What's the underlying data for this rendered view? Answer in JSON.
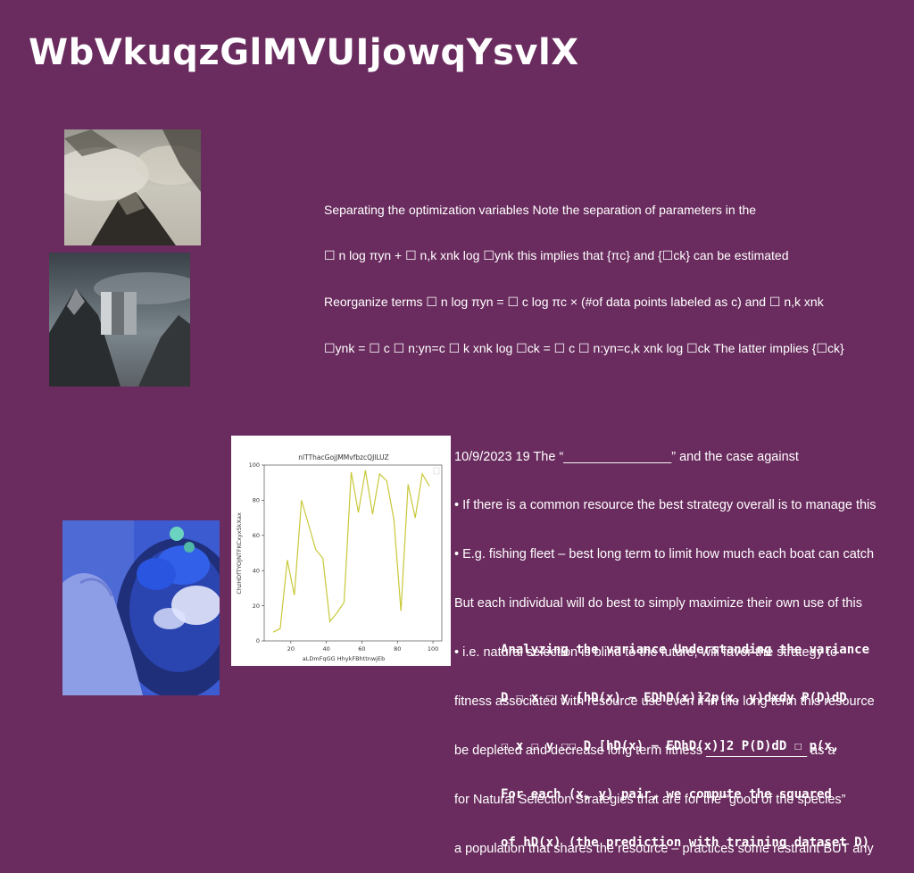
{
  "slide": {
    "title": "WbVkuqzGlMVUIjowqYsvlX",
    "images": [
      "mountain-clouds-photo",
      "mountain-monolith-photo",
      "blue-food-hand-photo"
    ],
    "text_blocks": [
      [
        "Separating the optimization variables Note the separation of parameters in the",
        "☐ n log πyn + ☐ n,k xnk log ☐ynk this implies that {πc} and {☐ck} can be estimated",
        "Reorganize terms ☐ n log πyn = ☐ c log πc × (#of data points labeled as c) and ☐ n,k xnk",
        "☐ynk = ☐ c ☐ n:yn=c ☐ k xnk log ☐ck = ☐ c ☐ n:yn=c,k xnk log ☐ck The latter implies {☐ck}"
      ],
      [
        "10/9/2023 19 The “_______________” and the case against",
        "• If there is a common resource the best strategy overall is to manage this",
        "• E.g. fishing fleet – best long term to limit how much each boat can catch",
        "But each individual will do best to simply maximize their own use of this",
        "• i.e. natural selection is blind to the future, will favor the strategy to",
        "fitness associated with resource use even if in the long term this resource",
        "be depleted and decrease long term fitness ______________ as a",
        "for Natural Selection Strategies that are for the “good of the species”",
        "a population that shares the resource – practices some restraint BUT any"
      ],
      [
        "Analyzing the variance Understanding the variance",
        "D ☐ x ☐ y [hD(x) − EDhD(x)]2p(x, y)dxdy P(D)dD",
        "☐ x ☐ y ☐☐ D [hD(x) − EDhD(x)]2 P(D)dD ☐ p(x,",
        "For each (x, y) pair, we compute the squared",
        "of hD(x) (the prediction with training dataset D)"
      ]
    ]
  },
  "colors": {
    "background": "#6a2c5e",
    "text": "#ffffff",
    "line": "#c8c83a"
  },
  "chart_data": {
    "type": "line",
    "title": "nlTThacGojJMMvfbzcQJlLUZ",
    "xlabel": "aLDmFqGG HhykFBhttnwjEb",
    "ylabel": "ChzHDfTYOJNTFKCxyxSkXax",
    "xlim": [
      5,
      105
    ],
    "ylim": [
      0,
      100
    ],
    "xticks": [
      20,
      40,
      60,
      80,
      100
    ],
    "yticks": [
      0,
      20,
      40,
      60,
      80,
      100
    ],
    "grid": false,
    "legend": "top-right",
    "series": [
      {
        "x": [
          10,
          14,
          18,
          22,
          26,
          30,
          34,
          38,
          42,
          46,
          50,
          54,
          58,
          62,
          66,
          70,
          74,
          78,
          82,
          86,
          90,
          94,
          98
        ],
        "values": [
          5,
          7,
          46,
          26,
          80,
          66,
          52,
          47,
          11,
          16,
          22,
          96,
          73,
          97,
          72,
          95,
          91,
          69,
          17,
          89,
          70,
          95,
          88
        ]
      }
    ]
  }
}
